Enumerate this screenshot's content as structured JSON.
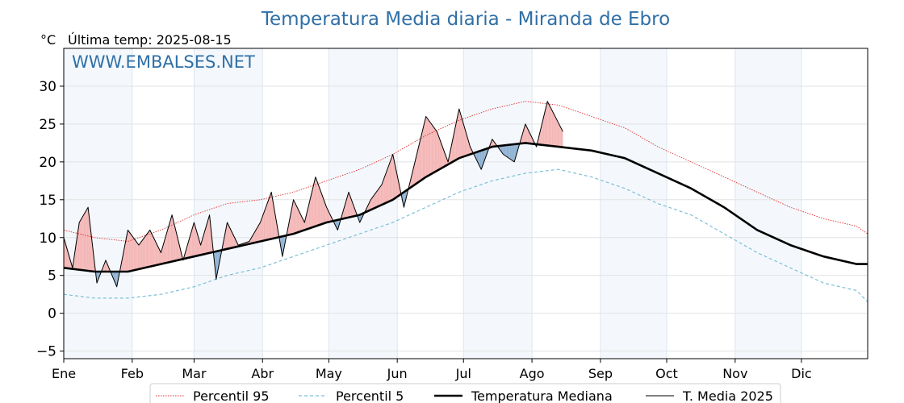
{
  "chart_data": {
    "type": "line",
    "title": "Temperatura Media diaria - Miranda de Ebro",
    "unit": "°C",
    "last_update_label": "Última temp: 2025-08-15",
    "watermark": "WWW.EMBALSES.NET",
    "ylim": [
      -6,
      35
    ],
    "yticks": [
      -5,
      0,
      5,
      10,
      15,
      20,
      25,
      30
    ],
    "ytick_labels": [
      "−5",
      "0",
      "5",
      "10",
      "15",
      "20",
      "25",
      "30"
    ],
    "x_domain_days": [
      1,
      365
    ],
    "months": [
      "Ene",
      "Feb",
      "Mar",
      "Abr",
      "May",
      "Jun",
      "Jul",
      "Ago",
      "Sep",
      "Oct",
      "Nov",
      "Dic"
    ],
    "month_start_days": [
      1,
      32,
      60,
      91,
      121,
      152,
      182,
      213,
      244,
      274,
      305,
      335
    ],
    "grid": true,
    "legend_position": "bottom",
    "series": [
      {
        "name": "Percentil 95",
        "color": "#e03030",
        "style": "dotted",
        "x": [
          1,
          15,
          30,
          45,
          60,
          75,
          90,
          105,
          120,
          135,
          150,
          165,
          180,
          195,
          210,
          225,
          240,
          255,
          270,
          285,
          300,
          315,
          330,
          345,
          360,
          365
        ],
        "y": [
          11,
          10,
          9.5,
          11,
          13,
          14.5,
          15,
          16,
          17.5,
          19,
          21,
          23.5,
          25.5,
          27,
          28,
          27.5,
          26,
          24.5,
          22,
          20,
          18,
          16,
          14,
          12.5,
          11.5,
          10.5
        ]
      },
      {
        "name": "Percentil 5",
        "color": "#7bbfd6",
        "style": "dashed",
        "x": [
          1,
          15,
          30,
          45,
          60,
          75,
          90,
          105,
          120,
          135,
          150,
          165,
          180,
          195,
          210,
          225,
          240,
          255,
          270,
          285,
          300,
          315,
          330,
          345,
          360,
          365
        ],
        "y": [
          2.5,
          2,
          2,
          2.5,
          3.5,
          5,
          6,
          7.5,
          9,
          10.5,
          12,
          14,
          16,
          17.5,
          18.5,
          19,
          18,
          16.5,
          14.5,
          13,
          10.5,
          8,
          6,
          4,
          3,
          1.5
        ]
      },
      {
        "name": "Temperatura Mediana",
        "color": "#000000",
        "style": "thick",
        "x": [
          1,
          15,
          30,
          45,
          60,
          75,
          90,
          105,
          120,
          135,
          150,
          165,
          180,
          195,
          210,
          225,
          240,
          255,
          270,
          285,
          300,
          315,
          330,
          345,
          360,
          365
        ],
        "y": [
          6,
          5.5,
          5.5,
          6.5,
          7.5,
          8.5,
          9.5,
          10.5,
          12,
          13,
          15,
          18,
          20.5,
          22,
          22.5,
          22,
          21.5,
          20.5,
          18.5,
          16.5,
          14,
          11,
          9,
          7.5,
          6.5,
          6.5
        ]
      },
      {
        "name": "T. Media 2025",
        "color": "#000000",
        "style": "thin",
        "x": [
          1,
          5,
          8,
          12,
          16,
          20,
          25,
          30,
          35,
          40,
          45,
          50,
          55,
          60,
          63,
          67,
          70,
          75,
          80,
          85,
          90,
          95,
          100,
          105,
          110,
          115,
          120,
          125,
          130,
          135,
          140,
          145,
          150,
          155,
          160,
          165,
          170,
          175,
          180,
          185,
          190,
          195,
          200,
          205,
          210,
          215,
          220,
          227
        ],
        "y": [
          10,
          6,
          12,
          14,
          4,
          7,
          3.5,
          11,
          9,
          11,
          8,
          13,
          7,
          12,
          9,
          13,
          4.5,
          12,
          9,
          9.5,
          12,
          16,
          7.5,
          15,
          12,
          18,
          14,
          11,
          16,
          12,
          15,
          17,
          21,
          14,
          20,
          26,
          24,
          20,
          27,
          22,
          19,
          23,
          21,
          20,
          25,
          22,
          28,
          24
        ]
      }
    ]
  }
}
